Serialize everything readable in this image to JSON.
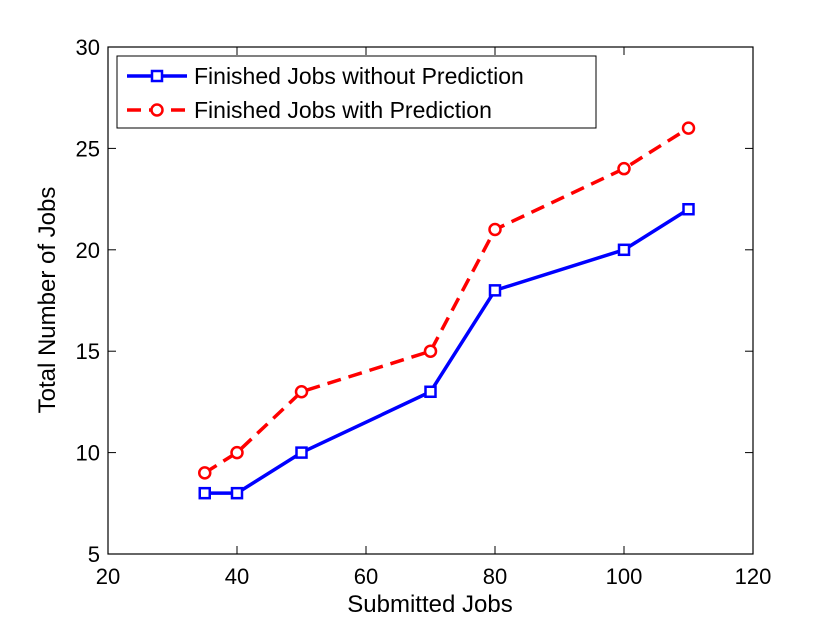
{
  "chart_data": {
    "type": "line",
    "title": "",
    "xlabel": "Submitted Jobs",
    "ylabel": "Total Number of Jobs",
    "xlim": [
      20,
      120
    ],
    "ylim": [
      5,
      30
    ],
    "xticks": [
      20,
      40,
      60,
      80,
      100,
      120
    ],
    "yticks": [
      5,
      10,
      15,
      20,
      25,
      30
    ],
    "grid": false,
    "legend_position": "top-left",
    "series": [
      {
        "name": "Finished Jobs without Prediction",
        "color": "#0000ff",
        "line_style": "solid",
        "marker": "square",
        "x": [
          35,
          40,
          50,
          70,
          80,
          100,
          110
        ],
        "y": [
          8,
          8,
          10,
          13,
          18,
          20,
          22
        ]
      },
      {
        "name": "Finished Jobs with Prediction",
        "color": "#ff0000",
        "line_style": "dashed",
        "marker": "circle",
        "x": [
          35,
          40,
          50,
          70,
          80,
          100,
          110
        ],
        "y": [
          9,
          10,
          13,
          15,
          21,
          24,
          26
        ]
      }
    ]
  }
}
